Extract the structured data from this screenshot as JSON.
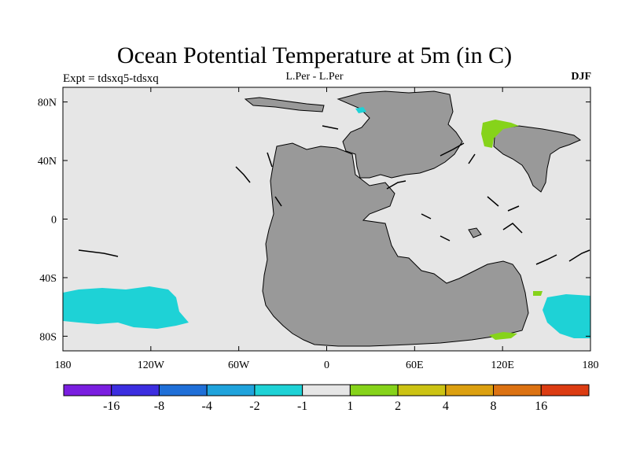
{
  "title": "Ocean Potential Temperature at 5m (in C)",
  "subtitle_left": "Expt = tdsxq5-tdsxq",
  "subtitle_center": "L.Per - L.Per",
  "subtitle_right": "DJF",
  "x_axis": {
    "labels": [
      "180",
      "120W",
      "60W",
      "0",
      "60E",
      "120E",
      "180"
    ],
    "values": [
      -180,
      -120,
      -60,
      0,
      60,
      120,
      180
    ],
    "range": [
      -180,
      180
    ]
  },
  "y_axis": {
    "labels": [
      "80N",
      "40N",
      "0",
      "40S",
      "80S"
    ],
    "values": [
      80,
      40,
      0,
      -40,
      -80
    ],
    "range": [
      -90,
      90
    ]
  },
  "colorbar": {
    "labels": [
      "-16",
      "-8",
      "-4",
      "-2",
      "-1",
      "1",
      "2",
      "4",
      "8",
      "16"
    ],
    "colors": [
      "#7a1ee0",
      "#3c2ee0",
      "#1f6fd8",
      "#1fa3dc",
      "#1ed2d6",
      "#e6e6e6",
      "#86d31a",
      "#ccc313",
      "#dca010",
      "#dc7212",
      "#dc3c12"
    ]
  },
  "colors": {
    "ocean": "#e6e6e6",
    "land": "#999999",
    "cold_anomaly": "#1ed2d6",
    "warm_anomaly": "#86d31a"
  }
}
